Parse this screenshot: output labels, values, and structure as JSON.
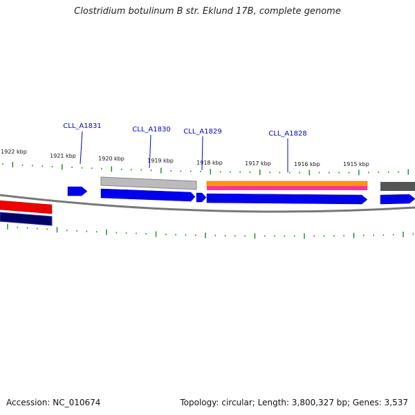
{
  "title": "Clostridium botulinum B str. Eklund 17B, complete genome",
  "footer": {
    "accession_text": "Accession: NC_010674",
    "summary_text": "Topology: circular; Length: 3,800,327 bp; Genes: 3,537"
  },
  "colors": {
    "backbone": "#777777",
    "tick": "#2a8a2a",
    "gene_label": "#0000cc",
    "forward_gene": "#0000ee",
    "grey_feature": "#bbbbbb",
    "dark_grey_feature": "#555555",
    "orange_feature": "#ff9900",
    "pink_feature": "#ff3399",
    "red_feature": "#ee0000",
    "navy_feature": "#000066"
  },
  "scale": {
    "unit": "kbp",
    "labels": [
      "1922 kbp",
      "1921 kbp",
      "1920 kbp",
      "1919 kbp",
      "1918 kbp",
      "1917 kbp",
      "1916 kbp",
      "1915 kbp"
    ]
  },
  "gene_labels": [
    "CLL_A1831",
    "CLL_A1830",
    "CLL_A1829",
    "CLL_A1828"
  ]
}
